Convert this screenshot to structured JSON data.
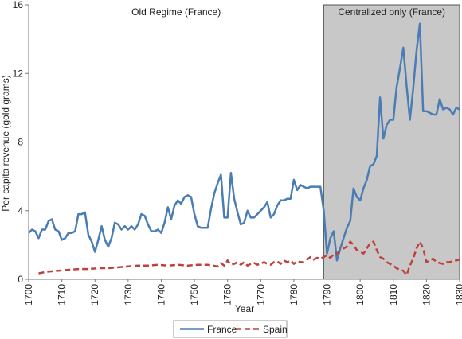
{
  "chart_data": {
    "type": "line",
    "xlabel": "Year",
    "ylabel": "Per capita revenue (gold grams)",
    "xlim": [
      1700,
      1830
    ],
    "ylim": [
      0,
      16
    ],
    "x_ticks": [
      "1700",
      "1710",
      "1720",
      "1730",
      "1740",
      "1750",
      "1760",
      "1770",
      "1780",
      "1790",
      "1800",
      "1810",
      "1820",
      "1830"
    ],
    "y_ticks": [
      "0",
      "4",
      "8",
      "12",
      "16"
    ],
    "grid": "none",
    "legend_position": "bottom-center",
    "regions": [
      {
        "label": "Old Regime (France)",
        "from": 1700,
        "to": 1789,
        "fill": "#ffffff"
      },
      {
        "label": "Centralized only (France)",
        "from": 1789,
        "to": 1830,
        "fill": "#c8c8c8"
      }
    ],
    "series": [
      {
        "name": "France",
        "style": "solid",
        "color": "#4a7db5",
        "points": [
          [
            1700,
            2.7
          ],
          [
            1701,
            2.9
          ],
          [
            1702,
            2.8
          ],
          [
            1703,
            2.4
          ],
          [
            1704,
            2.9
          ],
          [
            1705,
            2.9
          ],
          [
            1706,
            3.4
          ],
          [
            1707,
            3.5
          ],
          [
            1708,
            2.9
          ],
          [
            1709,
            2.8
          ],
          [
            1710,
            2.3
          ],
          [
            1711,
            2.4
          ],
          [
            1712,
            2.7
          ],
          [
            1713,
            2.7
          ],
          [
            1714,
            2.8
          ],
          [
            1715,
            3.8
          ],
          [
            1716,
            3.8
          ],
          [
            1717,
            3.9
          ],
          [
            1718,
            2.6
          ],
          [
            1719,
            2.2
          ],
          [
            1720,
            1.6
          ],
          [
            1721,
            2.3
          ],
          [
            1722,
            3.1
          ],
          [
            1723,
            2.3
          ],
          [
            1724,
            1.9
          ],
          [
            1725,
            2.4
          ],
          [
            1726,
            3.3
          ],
          [
            1727,
            3.2
          ],
          [
            1728,
            2.9
          ],
          [
            1729,
            3.1
          ],
          [
            1730,
            2.9
          ],
          [
            1731,
            3.1
          ],
          [
            1732,
            2.9
          ],
          [
            1733,
            3.2
          ],
          [
            1734,
            3.8
          ],
          [
            1735,
            3.7
          ],
          [
            1736,
            3.2
          ],
          [
            1737,
            2.8
          ],
          [
            1738,
            2.8
          ],
          [
            1739,
            2.9
          ],
          [
            1740,
            2.7
          ],
          [
            1741,
            3.3
          ],
          [
            1742,
            4.2
          ],
          [
            1743,
            3.5
          ],
          [
            1744,
            4.3
          ],
          [
            1745,
            4.6
          ],
          [
            1746,
            4.4
          ],
          [
            1747,
            4.8
          ],
          [
            1748,
            4.9
          ],
          [
            1749,
            4.8
          ],
          [
            1750,
            3.8
          ],
          [
            1751,
            3.1
          ],
          [
            1752,
            3.0
          ],
          [
            1753,
            3.0
          ],
          [
            1754,
            3.0
          ],
          [
            1755,
            4.1
          ],
          [
            1756,
            5.0
          ],
          [
            1757,
            5.6
          ],
          [
            1758,
            6.1
          ],
          [
            1759,
            3.6
          ],
          [
            1760,
            3.6
          ],
          [
            1761,
            6.2
          ],
          [
            1762,
            4.7
          ],
          [
            1763,
            3.9
          ],
          [
            1764,
            3.2
          ],
          [
            1765,
            3.3
          ],
          [
            1766,
            4.0
          ],
          [
            1767,
            3.6
          ],
          [
            1768,
            3.6
          ],
          [
            1769,
            3.8
          ],
          [
            1770,
            4.0
          ],
          [
            1771,
            4.2
          ],
          [
            1772,
            4.5
          ],
          [
            1773,
            3.6
          ],
          [
            1774,
            3.8
          ],
          [
            1775,
            4.3
          ],
          [
            1776,
            4.6
          ],
          [
            1777,
            4.6
          ],
          [
            1778,
            4.7
          ],
          [
            1779,
            4.7
          ],
          [
            1780,
            5.8
          ],
          [
            1781,
            5.2
          ],
          [
            1782,
            5.5
          ],
          [
            1783,
            5.4
          ],
          [
            1784,
            5.3
          ],
          [
            1785,
            5.4
          ],
          [
            1786,
            5.4
          ],
          [
            1787,
            5.4
          ],
          [
            1788,
            5.4
          ],
          [
            1789,
            4.0
          ],
          [
            1790,
            1.5
          ],
          [
            1791,
            2.4
          ],
          [
            1792,
            2.8
          ],
          [
            1793,
            1.1
          ],
          [
            1794,
            1.8
          ],
          [
            1795,
            2.4
          ],
          [
            1796,
            3.0
          ],
          [
            1797,
            3.4
          ],
          [
            1798,
            5.3
          ],
          [
            1799,
            4.8
          ],
          [
            1800,
            4.6
          ],
          [
            1801,
            5.3
          ],
          [
            1802,
            5.8
          ],
          [
            1803,
            6.6
          ],
          [
            1804,
            6.7
          ],
          [
            1805,
            7.2
          ],
          [
            1806,
            10.6
          ],
          [
            1807,
            8.2
          ],
          [
            1808,
            9.0
          ],
          [
            1809,
            9.3
          ],
          [
            1810,
            9.3
          ],
          [
            1811,
            11.2
          ],
          [
            1812,
            12.3
          ],
          [
            1813,
            13.5
          ],
          [
            1814,
            11.3
          ],
          [
            1815,
            9.3
          ],
          [
            1816,
            11.1
          ],
          [
            1817,
            13.3
          ],
          [
            1818,
            14.9
          ],
          [
            1819,
            9.8
          ],
          [
            1820,
            9.8
          ],
          [
            1821,
            9.7
          ],
          [
            1822,
            9.6
          ],
          [
            1823,
            9.6
          ],
          [
            1824,
            10.5
          ],
          [
            1825,
            9.9
          ],
          [
            1826,
            10.0
          ],
          [
            1827,
            9.9
          ],
          [
            1828,
            9.6
          ],
          [
            1829,
            10.0
          ],
          [
            1830,
            9.9
          ]
        ]
      },
      {
        "name": "Spain",
        "style": "dashed",
        "color": "#c0413b",
        "points": [
          [
            1703,
            0.35
          ],
          [
            1706,
            0.45
          ],
          [
            1709,
            0.5
          ],
          [
            1712,
            0.55
          ],
          [
            1715,
            0.6
          ],
          [
            1718,
            0.6
          ],
          [
            1721,
            0.65
          ],
          [
            1724,
            0.65
          ],
          [
            1727,
            0.7
          ],
          [
            1730,
            0.75
          ],
          [
            1733,
            0.8
          ],
          [
            1736,
            0.8
          ],
          [
            1739,
            0.85
          ],
          [
            1742,
            0.8
          ],
          [
            1745,
            0.85
          ],
          [
            1748,
            0.8
          ],
          [
            1751,
            0.85
          ],
          [
            1754,
            0.85
          ],
          [
            1757,
            0.75
          ],
          [
            1758,
            0.95
          ],
          [
            1759,
            0.8
          ],
          [
            1760,
            1.1
          ],
          [
            1761,
            0.85
          ],
          [
            1762,
            0.9
          ],
          [
            1763,
            1.0
          ],
          [
            1764,
            0.85
          ],
          [
            1765,
            1.0
          ],
          [
            1766,
            0.8
          ],
          [
            1767,
            0.9
          ],
          [
            1768,
            0.95
          ],
          [
            1769,
            0.85
          ],
          [
            1770,
            0.9
          ],
          [
            1771,
            1.0
          ],
          [
            1772,
            0.9
          ],
          [
            1773,
            0.85
          ],
          [
            1774,
            1.0
          ],
          [
            1775,
            1.05
          ],
          [
            1776,
            0.9
          ],
          [
            1777,
            1.1
          ],
          [
            1778,
            1.0
          ],
          [
            1779,
            1.1
          ],
          [
            1780,
            0.9
          ],
          [
            1781,
            1.05
          ],
          [
            1782,
            1.0
          ],
          [
            1783,
            1.0
          ],
          [
            1784,
            1.15
          ],
          [
            1785,
            1.3
          ],
          [
            1786,
            1.15
          ],
          [
            1787,
            1.25
          ],
          [
            1788,
            1.2
          ],
          [
            1789,
            1.3
          ],
          [
            1790,
            1.4
          ],
          [
            1791,
            1.25
          ],
          [
            1792,
            1.45
          ],
          [
            1793,
            1.5
          ],
          [
            1794,
            1.7
          ],
          [
            1795,
            1.8
          ],
          [
            1796,
            1.9
          ],
          [
            1797,
            2.2
          ],
          [
            1798,
            2.0
          ],
          [
            1799,
            1.7
          ],
          [
            1800,
            1.6
          ],
          [
            1801,
            1.5
          ],
          [
            1802,
            1.8
          ],
          [
            1803,
            2.1
          ],
          [
            1804,
            2.2
          ],
          [
            1805,
            1.7
          ],
          [
            1806,
            1.3
          ],
          [
            1807,
            1.2
          ],
          [
            1808,
            1.0
          ],
          [
            1809,
            0.9
          ],
          [
            1810,
            0.8
          ],
          [
            1811,
            0.65
          ],
          [
            1812,
            0.55
          ],
          [
            1813,
            0.5
          ],
          [
            1814,
            0.25
          ],
          [
            1815,
            0.8
          ],
          [
            1816,
            1.2
          ],
          [
            1817,
            1.8
          ],
          [
            1818,
            2.2
          ],
          [
            1819,
            1.8
          ],
          [
            1820,
            1.0
          ],
          [
            1821,
            1.1
          ],
          [
            1822,
            1.2
          ],
          [
            1823,
            1.0
          ],
          [
            1824,
            0.95
          ],
          [
            1825,
            0.9
          ],
          [
            1826,
            1.0
          ],
          [
            1827,
            1.0
          ],
          [
            1828,
            1.05
          ],
          [
            1829,
            1.1
          ],
          [
            1830,
            1.15
          ]
        ]
      }
    ]
  }
}
